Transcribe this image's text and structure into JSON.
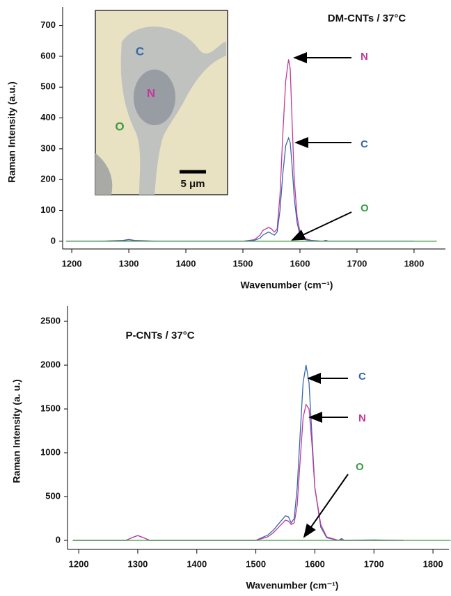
{
  "chart_data": [
    {
      "type": "line",
      "title": "DM-CNTs / 37°C",
      "x_label": "Wavenumber (cm⁻¹)",
      "y_label": "Raman Intensity (a.u.)",
      "x": [
        1190,
        1250,
        1290,
        1300,
        1310,
        1350,
        1450,
        1500,
        1520,
        1530,
        1535,
        1540,
        1545,
        1550,
        1555,
        1560,
        1565,
        1570,
        1575,
        1580,
        1583,
        1586,
        1590,
        1595,
        1600,
        1610,
        1620,
        1640,
        1645,
        1650,
        1700,
        1750,
        1800,
        1840
      ],
      "series": [
        {
          "name": "N",
          "color": "#c2389b",
          "values": [
            0,
            0,
            3,
            6,
            3,
            0,
            0,
            0,
            5,
            20,
            35,
            40,
            45,
            40,
            30,
            40,
            150,
            350,
            520,
            590,
            560,
            400,
            200,
            80,
            30,
            8,
            3,
            0,
            3,
            0,
            0,
            0,
            0,
            null
          ]
        },
        {
          "name": "C",
          "color": "#3467ad",
          "values": [
            0,
            0,
            2,
            5,
            2,
            0,
            0,
            0,
            3,
            10,
            20,
            25,
            30,
            25,
            20,
            30,
            100,
            220,
            310,
            335,
            320,
            250,
            140,
            60,
            20,
            5,
            2,
            0,
            2,
            0,
            0,
            0,
            0,
            null
          ]
        },
        {
          "name": "O",
          "color": "#3c9a44",
          "values": [
            0,
            0,
            0,
            0,
            0,
            0,
            0,
            0,
            0,
            0,
            0,
            0,
            0,
            0,
            0,
            0,
            0,
            0,
            0,
            0,
            0,
            0,
            0,
            0,
            0,
            0,
            0,
            0,
            0,
            0,
            0,
            0,
            0,
            0
          ]
        }
      ],
      "xlim": [
        1184,
        1855
      ],
      "ylim": [
        -25,
        760
      ],
      "xticks": [
        1200,
        1300,
        1400,
        1500,
        1600,
        1700,
        1800
      ],
      "yticks": [
        0,
        100,
        200,
        300,
        400,
        500,
        600,
        700
      ],
      "inset": {
        "labels": [
          "C",
          "N",
          "O"
        ],
        "scale_bar": "5 μm"
      }
    },
    {
      "type": "line",
      "title": "P-CNTs / 37°C",
      "x_label": "Wavenumber (cm⁻¹)",
      "y_label": "Raman Intensity (a. u.)",
      "x": [
        1190,
        1280,
        1290,
        1300,
        1310,
        1320,
        1400,
        1500,
        1520,
        1530,
        1540,
        1550,
        1555,
        1560,
        1565,
        1570,
        1575,
        1580,
        1585,
        1590,
        1595,
        1600,
        1610,
        1620,
        1640,
        1645,
        1650,
        1700,
        1750,
        1830
      ],
      "series": [
        {
          "name": "C",
          "color": "#3467ad",
          "values": [
            0,
            0,
            30,
            55,
            30,
            0,
            0,
            0,
            60,
            120,
            200,
            280,
            270,
            200,
            250,
            600,
            1200,
            1800,
            2000,
            1800,
            1200,
            600,
            150,
            30,
            0,
            20,
            0,
            5,
            0,
            null
          ]
        },
        {
          "name": "N",
          "color": "#c2389b",
          "values": [
            0,
            0,
            30,
            55,
            30,
            0,
            0,
            0,
            40,
            90,
            160,
            230,
            220,
            180,
            200,
            400,
            900,
            1400,
            1550,
            1500,
            1100,
            600,
            180,
            40,
            0,
            10,
            0,
            0,
            0,
            null
          ]
        },
        {
          "name": "O",
          "color": "#3c9a44",
          "values": [
            0,
            0,
            0,
            0,
            0,
            0,
            0,
            0,
            0,
            0,
            0,
            0,
            0,
            0,
            0,
            0,
            0,
            0,
            0,
            0,
            0,
            0,
            0,
            0,
            0,
            0,
            0,
            0,
            0,
            0
          ]
        }
      ],
      "xlim": [
        1181,
        1827
      ],
      "ylim": [
        -103,
        2675
      ],
      "xticks": [
        1200,
        1300,
        1400,
        1500,
        1600,
        1700,
        1800
      ],
      "yticks": [
        0,
        500,
        1000,
        1500,
        2000,
        2500
      ]
    }
  ]
}
